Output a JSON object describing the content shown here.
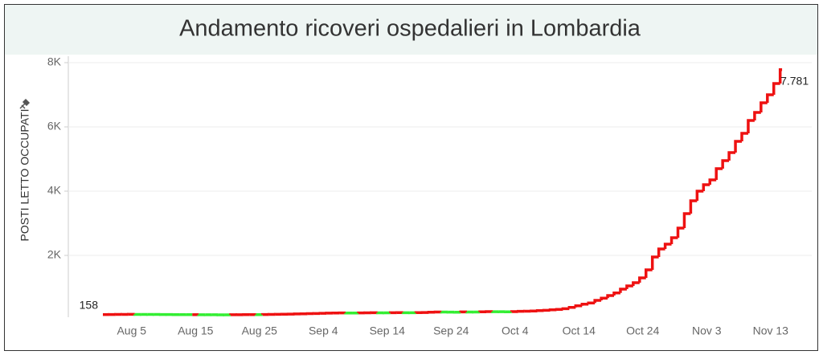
{
  "chart_data": {
    "type": "step-line",
    "title": "Andamento ricoveri ospedalieri in Lombardia",
    "y_label": "POSTI LETTO OCCUPATI",
    "x": [
      "Aug 1",
      "Aug 2",
      "Aug 3",
      "Aug 4",
      "Aug 5",
      "Aug 6",
      "Aug 7",
      "Aug 8",
      "Aug 9",
      "Aug 10",
      "Aug 11",
      "Aug 12",
      "Aug 13",
      "Aug 14",
      "Aug 15",
      "Aug 16",
      "Aug 17",
      "Aug 18",
      "Aug 19",
      "Aug 20",
      "Aug 21",
      "Aug 22",
      "Aug 23",
      "Aug 24",
      "Aug 25",
      "Aug 26",
      "Aug 27",
      "Aug 28",
      "Aug 29",
      "Aug 30",
      "Aug 31",
      "Sep 1",
      "Sep 2",
      "Sep 3",
      "Sep 4",
      "Sep 5",
      "Sep 6",
      "Sep 7",
      "Sep 8",
      "Sep 9",
      "Sep 10",
      "Sep 11",
      "Sep 12",
      "Sep 13",
      "Sep 14",
      "Sep 15",
      "Sep 16",
      "Sep 17",
      "Sep 18",
      "Sep 19",
      "Sep 20",
      "Sep 21",
      "Sep 22",
      "Sep 23",
      "Sep 24",
      "Sep 25",
      "Sep 26",
      "Sep 27",
      "Sep 28",
      "Sep 29",
      "Sep 30",
      "Oct 1",
      "Oct 2",
      "Oct 3",
      "Oct 4",
      "Oct 5",
      "Oct 6",
      "Oct 7",
      "Oct 8",
      "Oct 9",
      "Oct 10",
      "Oct 11",
      "Oct 12",
      "Oct 13",
      "Oct 14",
      "Oct 15",
      "Oct 16",
      "Oct 17",
      "Oct 18",
      "Oct 19",
      "Oct 20",
      "Oct 21",
      "Oct 22",
      "Oct 23",
      "Oct 24",
      "Oct 25",
      "Oct 26",
      "Oct 27",
      "Oct 28",
      "Oct 29",
      "Oct 30",
      "Oct 31",
      "Nov 1",
      "Nov 2",
      "Nov 3",
      "Nov 4",
      "Nov 5",
      "Nov 6",
      "Nov 7",
      "Nov 8",
      "Nov 9",
      "Nov 10",
      "Nov 11",
      "Nov 12",
      "Nov 13",
      "Nov 14",
      "Nov 15"
    ],
    "values": [
      158,
      160,
      162,
      163,
      165,
      164,
      163,
      162,
      161,
      160,
      158,
      157,
      156,
      155,
      155,
      154,
      153,
      152,
      151,
      150,
      152,
      153,
      155,
      156,
      155,
      158,
      162,
      165,
      170,
      173,
      178,
      182,
      186,
      192,
      198,
      203,
      207,
      208,
      206,
      205,
      210,
      212,
      215,
      214,
      213,
      215,
      218,
      217,
      216,
      220,
      223,
      230,
      238,
      236,
      234,
      232,
      240,
      238,
      236,
      245,
      250,
      248,
      246,
      245,
      250,
      258,
      262,
      270,
      280,
      290,
      305,
      320,
      340,
      380,
      430,
      480,
      520,
      600,
      670,
      750,
      830,
      950,
      1050,
      1150,
      1300,
      1550,
      1950,
      2200,
      2350,
      2550,
      2850,
      3300,
      3700,
      4000,
      4200,
      4350,
      4700,
      4950,
      5200,
      5550,
      5800,
      6200,
      6450,
      6750,
      7000,
      7350,
      7781
    ],
    "value_labels": [
      "158",
      null,
      null,
      null,
      null,
      null,
      null,
      null,
      null,
      null,
      null,
      null,
      null,
      null,
      null,
      null,
      null,
      null,
      null,
      null,
      null,
      null,
      null,
      null,
      null,
      null,
      null,
      null,
      null,
      null,
      null,
      null,
      null,
      null,
      null,
      null,
      null,
      null,
      null,
      null,
      null,
      null,
      null,
      null,
      null,
      null,
      null,
      null,
      null,
      null,
      null,
      null,
      null,
      null,
      null,
      null,
      null,
      null,
      null,
      null,
      null,
      null,
      null,
      null,
      null,
      null,
      null,
      null,
      null,
      null,
      null,
      null,
      null,
      null,
      null,
      null,
      null,
      null,
      null,
      null,
      null,
      null,
      null,
      null,
      null,
      null,
      null,
      null,
      null,
      null,
      null,
      null,
      null,
      null,
      null,
      null,
      null,
      null,
      null,
      null,
      null,
      null,
      null,
      null,
      null,
      null,
      "7.781"
    ],
    "increase_color": "#ee1111",
    "decrease_color": "#33ee33",
    "ylim": [
      0,
      8000
    ],
    "yticks": [
      {
        "value": 2000,
        "label": "2K"
      },
      {
        "value": 4000,
        "label": "4K"
      },
      {
        "value": 6000,
        "label": "6K"
      },
      {
        "value": 8000,
        "label": "8K"
      }
    ],
    "xticks": [
      "Aug 5",
      "Aug 15",
      "Aug 25",
      "Sep 4",
      "Sep 14",
      "Sep 24",
      "Oct 4",
      "Oct 14",
      "Oct 24",
      "Nov 3",
      "Nov 13"
    ],
    "grid": true
  }
}
